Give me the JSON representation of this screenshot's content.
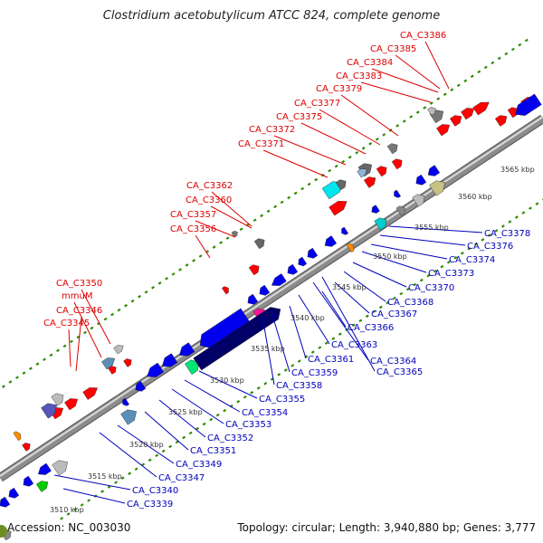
{
  "title": "Clostridium acetobutylicum ATCC 824, complete genome",
  "footer": {
    "accession": "Accession: NC_003030",
    "summary": "Topology: circular; Length: 3,940,880 bp; Genes: 3,777"
  },
  "colors": {
    "forward_gene": "#ff0000",
    "reverse_gene": "#0000ee",
    "forward_label": "#dd0000",
    "reverse_label": "#0000bb",
    "backbone": "#8c8c8c",
    "tick": "#2e8b00"
  },
  "kbp_ticks": [
    "3510 kbp",
    "3515 kbp",
    "3520 kbp",
    "3525 kbp",
    "3530 kbp",
    "3535 kbp",
    "3540 kbp",
    "3545 kbp",
    "3550 kbp",
    "3555 kbp",
    "3560 kbp",
    "3565 kbp"
  ],
  "upper_labels": [
    "CA_C3345",
    "CA_C3346",
    "mmuM",
    "CA_C3350",
    "CA_C3356",
    "CA_C3357",
    "CA_C3360",
    "CA_C3362",
    "CA_C3371",
    "CA_C3372",
    "CA_C3375",
    "CA_C3377",
    "CA_C3379",
    "CA_C3383",
    "CA_C3384",
    "CA_C3385",
    "CA_C3386"
  ],
  "lower_labels": [
    "CA_C3339",
    "CA_C3340",
    "CA_C3347",
    "CA_C3349",
    "CA_C3351",
    "CA_C3352",
    "CA_C3353",
    "CA_C3354",
    "CA_C3355",
    "CA_C3358",
    "CA_C3359",
    "CA_C3361",
    "CA_C3363",
    "CA_C3364",
    "CA_C3365",
    "CA_C3366",
    "CA_C3367",
    "CA_C3368",
    "CA_C3370",
    "CA_C3373",
    "CA_C3374",
    "CA_C3376",
    "CA_C3378"
  ]
}
